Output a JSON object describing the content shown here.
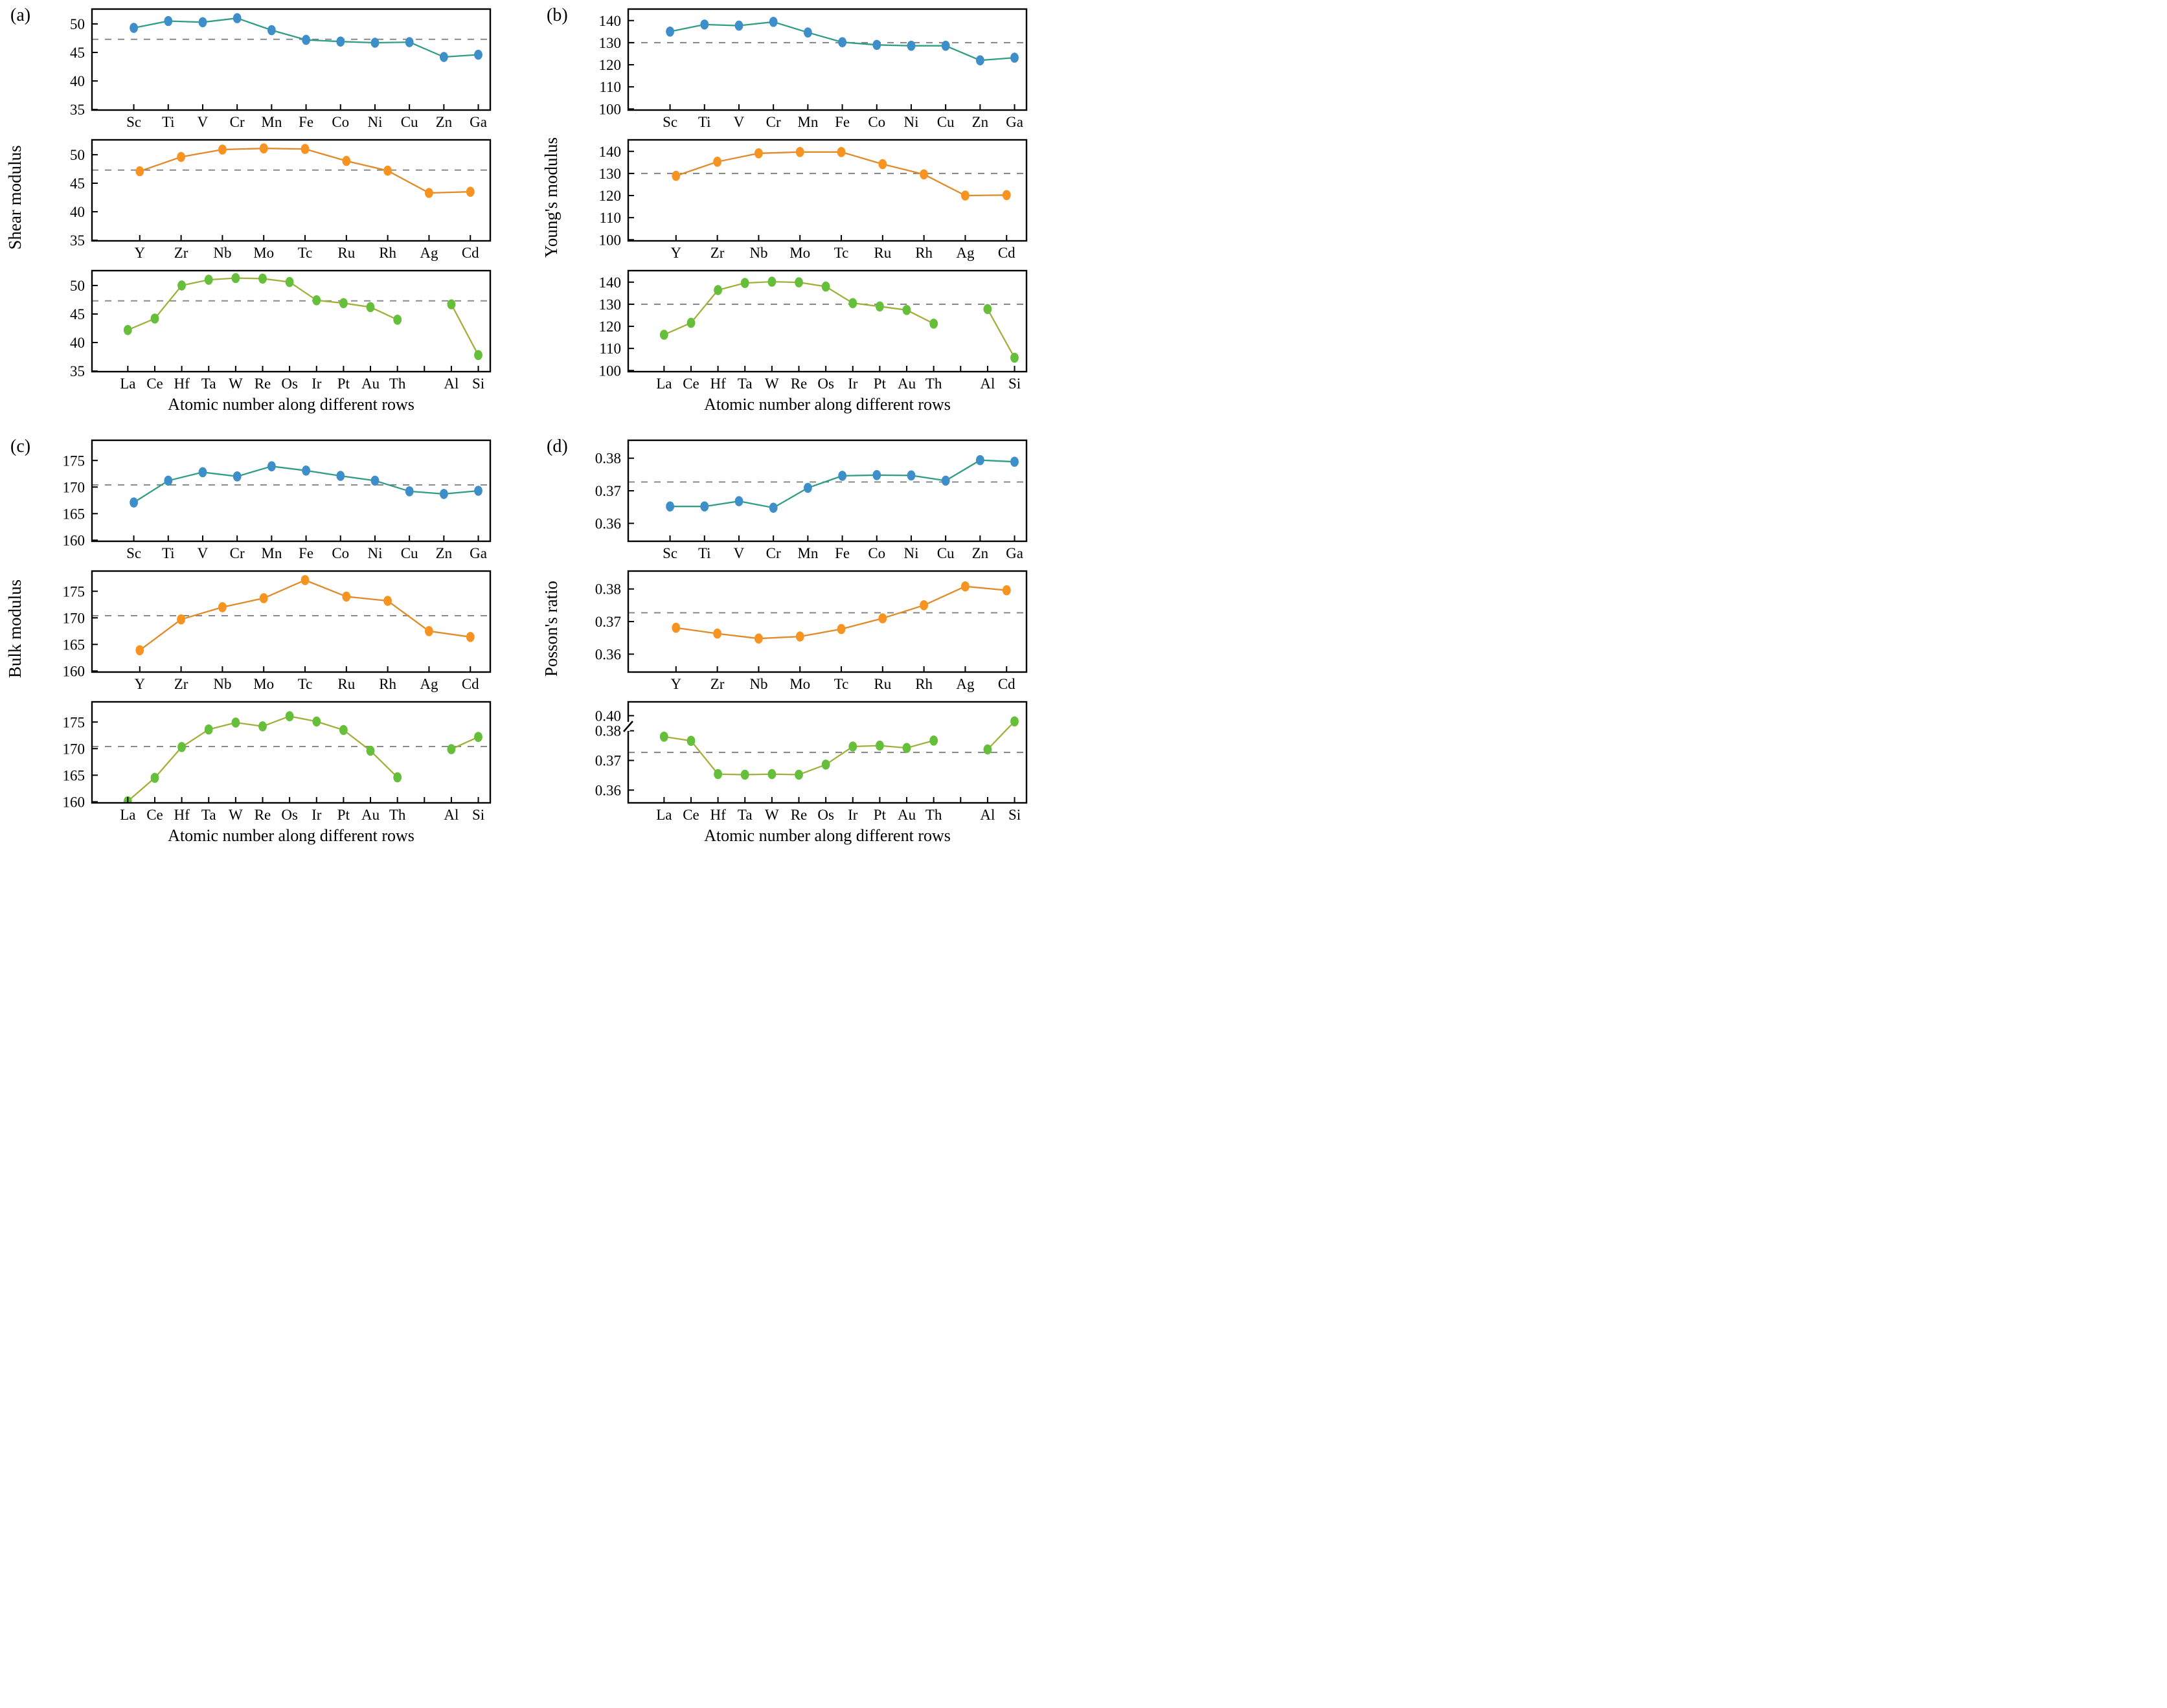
{
  "chart_data": {
    "type": "line",
    "layout": {
      "grid": "2x2 panels, 3 stacked subplots per panel",
      "legend": "none",
      "gridlines": "off",
      "dashed_reference_line": "horizontal mean line in every subplot"
    },
    "colors": {
      "blue_marker": "#3d8ec9",
      "blue_line": "#2f9e83",
      "orange_marker": "#f79421",
      "orange_line": "#e08a28",
      "green_marker": "#66bf3a",
      "green_line": "#a3af3a",
      "dashed_line": "#828282",
      "axis": "#000000"
    },
    "panels": [
      {
        "letter": "(a)",
        "ylabel": "Shear modulus",
        "xlabel": "Atomic number along different rows",
        "subplots": [
          {
            "series_color": "blue",
            "x_range": [
              0.105,
              0.97
            ],
            "categories": [
              "Sc",
              "Ti",
              "V",
              "Cr",
              "Mn",
              "Fe",
              "Co",
              "Ni",
              "Cu",
              "Zn",
              "Ga"
            ],
            "values": [
              49.3,
              50.5,
              50.3,
              51.0,
              48.9,
              47.2,
              46.9,
              46.7,
              46.8,
              44.2,
              44.6
            ],
            "ytick_vals": [
              35,
              40,
              45,
              50
            ],
            "ytick_labels": [
              "35",
              "40",
              "45",
              "50"
            ],
            "ylim": [
              34.9,
              52.6
            ],
            "dashed_y": 47.3
          },
          {
            "series_color": "orange",
            "x_range": [
              0.12,
              0.95
            ],
            "categories": [
              "Y",
              "Zr",
              "Nb",
              "Mo",
              "Tc",
              "Ru",
              "Rh",
              "Ag",
              "Cd"
            ],
            "values": [
              47.1,
              49.6,
              50.9,
              51.1,
              51.0,
              48.9,
              47.2,
              43.3,
              43.5
            ],
            "ytick_vals": [
              35,
              40,
              45,
              50
            ],
            "ytick_labels": [
              "35",
              "40",
              "45",
              "50"
            ],
            "ylim": [
              34.9,
              52.6
            ],
            "dashed_y": 47.3
          },
          {
            "series_color": "green",
            "x_range": [
              0.09,
              0.97
            ],
            "categories": [
              "La",
              "Ce",
              "Hf",
              "Ta",
              "W",
              "Re",
              "Os",
              "Ir",
              "Pt",
              "Au",
              "Th",
              "",
              "Al",
              "Si"
            ],
            "values": [
              42.2,
              44.2,
              50.0,
              51.0,
              51.3,
              51.2,
              50.6,
              47.4,
              46.9,
              46.2,
              44.0,
              null,
              46.7,
              37.8
            ],
            "segments": [
              [
                0,
                10
              ],
              [
                12,
                13
              ]
            ],
            "ytick_vals": [
              35,
              40,
              45,
              50
            ],
            "ytick_labels": [
              "35",
              "40",
              "45",
              "50"
            ],
            "ylim": [
              34.9,
              52.6
            ],
            "dashed_y": 47.3
          }
        ]
      },
      {
        "letter": "(b)",
        "ylabel": "Young's modulus",
        "xlabel": "Atomic number along different rows",
        "subplots": [
          {
            "series_color": "blue",
            "x_range": [
              0.105,
              0.97
            ],
            "categories": [
              "Sc",
              "Ti",
              "V",
              "Cr",
              "Mn",
              "Fe",
              "Co",
              "Ni",
              "Cu",
              "Zn",
              "Ga"
            ],
            "values": [
              135.0,
              138.2,
              137.7,
              139.4,
              134.6,
              130.2,
              129.0,
              128.6,
              128.6,
              122.0,
              123.2
            ],
            "ytick_vals": [
              100,
              110,
              120,
              130,
              140
            ],
            "ytick_labels": [
              "100",
              "110",
              "120",
              "130",
              "140"
            ],
            "ylim": [
              99.5,
              145.2
            ],
            "dashed_y": 130.0
          },
          {
            "series_color": "orange",
            "x_range": [
              0.12,
              0.95
            ],
            "categories": [
              "Y",
              "Zr",
              "Nb",
              "Mo",
              "Tc",
              "Ru",
              "Rh",
              "Ag",
              "Cd"
            ],
            "values": [
              128.9,
              135.3,
              139.1,
              139.7,
              139.7,
              134.2,
              129.6,
              120.0,
              120.2
            ],
            "ytick_vals": [
              100,
              110,
              120,
              130,
              140
            ],
            "ytick_labels": [
              "100",
              "110",
              "120",
              "130",
              "140"
            ],
            "ylim": [
              99.5,
              145.2
            ],
            "dashed_y": 130.0
          },
          {
            "series_color": "green",
            "x_range": [
              0.09,
              0.97
            ],
            "categories": [
              "La",
              "Ce",
              "Hf",
              "Ta",
              "W",
              "Re",
              "Os",
              "Ir",
              "Pt",
              "Au",
              "Th",
              "",
              "Al",
              "Si"
            ],
            "values": [
              116.2,
              121.6,
              136.4,
              139.6,
              140.2,
              139.9,
              138.0,
              130.5,
              129.0,
              127.4,
              121.2,
              null,
              127.8,
              105.8
            ],
            "segments": [
              [
                0,
                10
              ],
              [
                12,
                13
              ]
            ],
            "ytick_vals": [
              100,
              110,
              120,
              130,
              140
            ],
            "ytick_labels": [
              "100",
              "110",
              "120",
              "130",
              "140"
            ],
            "ylim": [
              99.5,
              145.2
            ],
            "dashed_y": 130.0
          }
        ]
      },
      {
        "letter": "(c)",
        "ylabel": "Bulk modulus",
        "xlabel": "Atomic number along different rows",
        "subplots": [
          {
            "series_color": "blue",
            "x_range": [
              0.105,
              0.97
            ],
            "categories": [
              "Sc",
              "Ti",
              "V",
              "Cr",
              "Mn",
              "Fe",
              "Co",
              "Ni",
              "Cu",
              "Zn",
              "Ga"
            ],
            "values": [
              167.1,
              171.2,
              172.8,
              172.0,
              173.9,
              173.1,
              172.1,
              171.2,
              169.2,
              168.7,
              169.3
            ],
            "ytick_vals": [
              160,
              165,
              170,
              175
            ],
            "ytick_labels": [
              "160",
              "165",
              "170",
              "175"
            ],
            "ylim": [
              159.8,
              178.8
            ],
            "dashed_y": 170.4
          },
          {
            "series_color": "orange",
            "x_range": [
              0.12,
              0.95
            ],
            "categories": [
              "Y",
              "Zr",
              "Nb",
              "Mo",
              "Tc",
              "Ru",
              "Rh",
              "Ag",
              "Cd"
            ],
            "values": [
              163.9,
              169.7,
              172.0,
              173.7,
              177.1,
              174.0,
              173.2,
              167.5,
              166.4
            ],
            "ytick_vals": [
              160,
              165,
              170,
              175
            ],
            "ytick_labels": [
              "160",
              "165",
              "170",
              "175"
            ],
            "ylim": [
              159.8,
              178.8
            ],
            "dashed_y": 170.4
          },
          {
            "series_color": "green",
            "x_range": [
              0.09,
              0.97
            ],
            "categories": [
              "La",
              "Ce",
              "Hf",
              "Ta",
              "W",
              "Re",
              "Os",
              "Ir",
              "Pt",
              "Au",
              "Th",
              "",
              "Al",
              "Si"
            ],
            "values": [
              160.1,
              164.5,
              170.3,
              173.6,
              174.9,
              174.2,
              176.1,
              175.1,
              173.5,
              169.6,
              164.6,
              null,
              169.9,
              172.2
            ],
            "segments": [
              [
                0,
                10
              ],
              [
                12,
                13
              ]
            ],
            "ytick_vals": [
              160,
              165,
              170,
              175
            ],
            "ytick_labels": [
              "160",
              "165",
              "170",
              "175"
            ],
            "ylim": [
              159.8,
              178.8
            ],
            "dashed_y": 170.4
          }
        ]
      },
      {
        "letter": "(d)",
        "ylabel": "Posson's ratio",
        "xlabel": "Atomic number along different rows",
        "subplots": [
          {
            "series_color": "blue",
            "x_range": [
              0.105,
              0.97
            ],
            "categories": [
              "Sc",
              "Ti",
              "V",
              "Cr",
              "Mn",
              "Fe",
              "Co",
              "Ni",
              "Cu",
              "Zn",
              "Ga"
            ],
            "values": [
              0.3652,
              0.3652,
              0.3668,
              0.3648,
              0.3709,
              0.3746,
              0.3748,
              0.3747,
              0.3731,
              0.3794,
              0.3789
            ],
            "ytick_vals": [
              0.36,
              0.37,
              0.38
            ],
            "ytick_labels": [
              "0.36",
              "0.37",
              "0.38"
            ],
            "ylim": [
              0.3545,
              0.3855
            ],
            "dashed_y": 0.3727
          },
          {
            "series_color": "orange",
            "x_range": [
              0.12,
              0.95
            ],
            "categories": [
              "Y",
              "Zr",
              "Nb",
              "Mo",
              "Tc",
              "Ru",
              "Rh",
              "Ag",
              "Cd"
            ],
            "values": [
              0.3681,
              0.3663,
              0.3648,
              0.3654,
              0.3677,
              0.371,
              0.375,
              0.3808,
              0.3796
            ],
            "ytick_vals": [
              0.36,
              0.37,
              0.38
            ],
            "ytick_labels": [
              "0.36",
              "0.37",
              "0.38"
            ],
            "ylim": [
              0.3545,
              0.3855
            ],
            "dashed_y": 0.3727
          },
          {
            "series_color": "green",
            "x_range": [
              0.09,
              0.97
            ],
            "categories": [
              "La",
              "Ce",
              "Hf",
              "Ta",
              "W",
              "Re",
              "Os",
              "Ir",
              "Pt",
              "Au",
              "Th",
              "",
              "Al",
              "Si"
            ],
            "values": [
              0.378,
              0.3766,
              0.3654,
              0.3652,
              0.3654,
              0.3652,
              0.3686,
              0.3747,
              0.375,
              0.3742,
              0.3767,
              null,
              0.3737,
              0.391
            ],
            "segments": [
              [
                0,
                10
              ],
              [
                12,
                13
              ]
            ],
            "ytick_vals": [
              0.36,
              0.37,
              0.38,
              0.4
            ],
            "ytick_labels": [
              "0.36",
              "0.37",
              "0.38",
              "0.40"
            ],
            "y_anchors": [
              [
                0.3557,
                0.0
              ],
              [
                0.381,
                0.743
              ],
              [
                0.4,
                0.863
              ],
              [
                0.4217,
                1.0
              ]
            ],
            "y_break_frac": 0.757,
            "dashed_y": 0.3727
          }
        ]
      }
    ]
  }
}
